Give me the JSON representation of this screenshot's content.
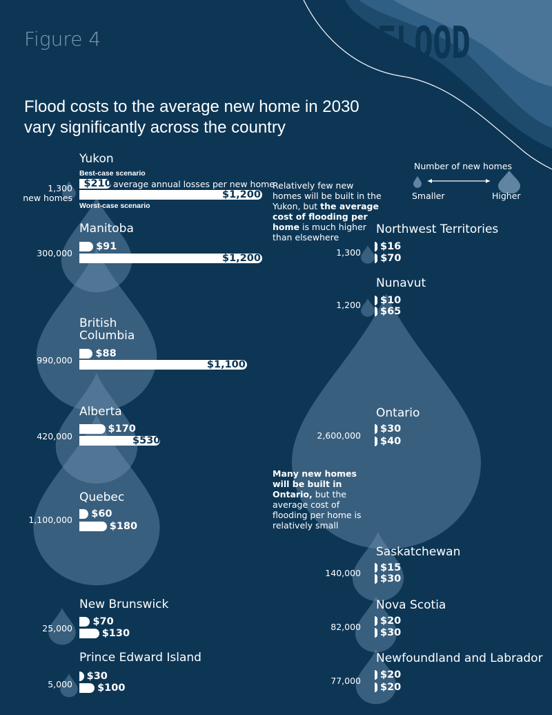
{
  "figure_label": "Figure 4",
  "flood_word": "FLOOD",
  "headline_line1": "Flood costs to the average new home in 2030",
  "headline_line2": "vary significantly across the country",
  "scenario_labels": {
    "best": "Best-case scenario",
    "worst": "Worst-case scenario",
    "average_text": "average annual losses per new home"
  },
  "legend": {
    "title": "Number of new homes",
    "smaller": "Smaller",
    "higher": "Higher"
  },
  "annotations": {
    "yukon_note_plain1": "Relatively few new homes will be built in the Yukon, but ",
    "yukon_note_bold": "the average cost of flooding per home",
    "yukon_note_plain2": " is much higher than elsewhere",
    "ontario_note_bold": "Many new homes will be built in Ontario,",
    "ontario_note_plain": " but the average cost of flooding per home is relatively small"
  },
  "colors": {
    "background": "#0d3655",
    "drop": "#6f93b1",
    "bar": "#ffffff",
    "text_dark": "#0d3655"
  },
  "chart_data": {
    "type": "bar",
    "title": "Flood costs to the average new home in 2030 vary significantly across the country",
    "series": [
      {
        "name": "Best-case scenario",
        "unit": "$"
      },
      {
        "name": "Worst-case scenario",
        "unit": "$"
      }
    ],
    "regions": [
      {
        "name": "Yukon",
        "homes": 1300,
        "homes_label": "1,300",
        "homes_sub": "new homes",
        "best": 210,
        "best_label": "$210",
        "worst": 1200,
        "worst_label": "$1,200"
      },
      {
        "name": "Manitoba",
        "homes": 300000,
        "homes_label": "300,000",
        "best": 91,
        "best_label": "$91",
        "worst": 1200,
        "worst_label": "$1,200"
      },
      {
        "name": "British Columbia",
        "homes": 990000,
        "homes_label": "990,000",
        "best": 88,
        "best_label": "$88",
        "worst": 1100,
        "worst_label": "$1,100"
      },
      {
        "name": "Alberta",
        "homes": 420000,
        "homes_label": "420,000",
        "best": 170,
        "best_label": "$170",
        "worst": 530,
        "worst_label": "$530"
      },
      {
        "name": "Quebec",
        "homes": 1100000,
        "homes_label": "1,100,000",
        "best": 60,
        "best_label": "$60",
        "worst": 180,
        "worst_label": "$180"
      },
      {
        "name": "New Brunswick",
        "homes": 25000,
        "homes_label": "25,000",
        "best": 70,
        "best_label": "$70",
        "worst": 130,
        "worst_label": "$130"
      },
      {
        "name": "Prince Edward Island",
        "homes": 5000,
        "homes_label": "5,000",
        "best": 30,
        "best_label": "$30",
        "worst": 100,
        "worst_label": "$100"
      },
      {
        "name": "Northwest Territories",
        "homes": 1300,
        "homes_label": "1,300",
        "best": 16,
        "best_label": "$16",
        "worst": 70,
        "worst_label": "$70"
      },
      {
        "name": "Nunavut",
        "homes": 1200,
        "homes_label": "1,200",
        "best": 10,
        "best_label": "$10",
        "worst": 65,
        "worst_label": "$65"
      },
      {
        "name": "Ontario",
        "homes": 2600000,
        "homes_label": "2,600,000",
        "best": 30,
        "best_label": "$30",
        "worst": 40,
        "worst_label": "$40"
      },
      {
        "name": "Saskatchewan",
        "homes": 140000,
        "homes_label": "140,000",
        "best": 15,
        "best_label": "$15",
        "worst": 30,
        "worst_label": "$30"
      },
      {
        "name": "Nova Scotia",
        "homes": 82000,
        "homes_label": "82,000",
        "best": 20,
        "best_label": "$20",
        "worst": 30,
        "worst_label": "$30"
      },
      {
        "name": "Newfoundland and Labrador",
        "homes": 77000,
        "homes_label": "77,000",
        "best": 20,
        "best_label": "$20",
        "worst": 20,
        "worst_label": "$20"
      }
    ]
  }
}
